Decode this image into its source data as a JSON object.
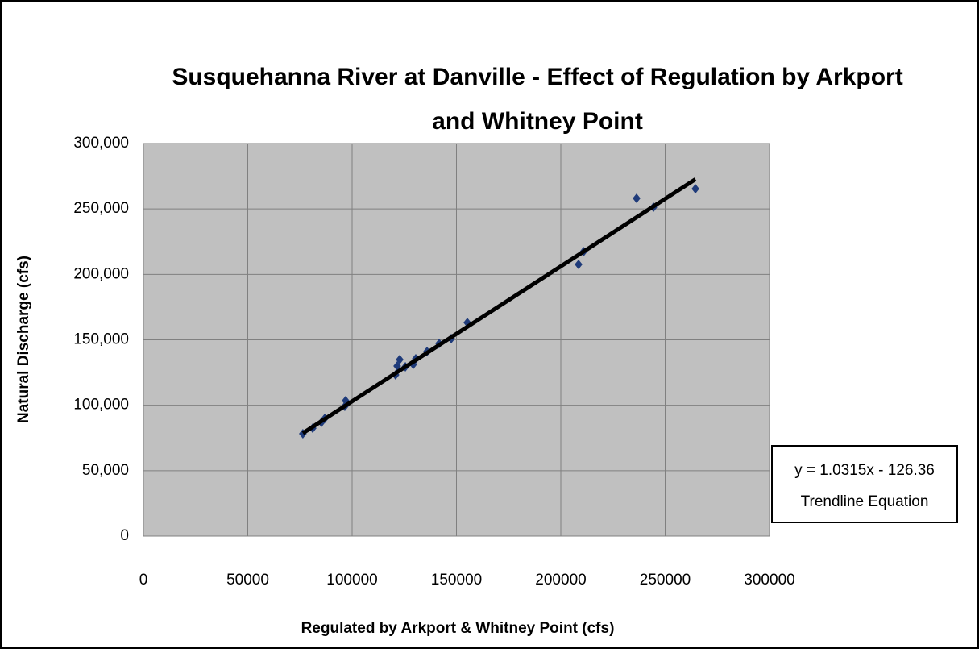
{
  "chart_data": {
    "type": "scatter",
    "title": [
      "Susquehanna River at Danville - Effect of Regulation by Arkport",
      "and Whitney Point"
    ],
    "x_label": "Regulated by Arkport & Whitney Point (cfs)",
    "y_label": "Natural Discharge (cfs)",
    "xlim": [
      0,
      300000
    ],
    "xticks": [
      0,
      50000,
      100000,
      150000,
      200000,
      250000,
      300000
    ],
    "ylim": [
      0,
      300000
    ],
    "yticks": [
      0,
      {
        "value": 50000,
        "label": "50,000"
      },
      {
        "value": 100000,
        "label": "100,000"
      },
      {
        "value": 150000,
        "label": "150,000"
      },
      {
        "value": 200000,
        "label": "200,000"
      },
      {
        "value": 250000,
        "label": "250,000"
      },
      {
        "value": 300000,
        "label": "300,000"
      }
    ],
    "grid": true,
    "plot_background": "#c0c0c0",
    "series": [
      {
        "color": "#1f3b7a",
        "x": [
          76400,
          81100,
          85300,
          86900,
          96500,
          96900,
          120800,
          121600,
          122800,
          125500,
          129300,
          130500,
          135900,
          141700,
          147500,
          155200,
          208500,
          210900,
          236300,
          244400,
          264500
        ],
        "values": [
          78200,
          82500,
          86900,
          89900,
          99200,
          103500,
          123200,
          130000,
          134900,
          129400,
          131200,
          135500,
          141100,
          147200,
          150900,
          163200,
          207600,
          217400,
          258100,
          251300,
          265400
        ]
      }
    ],
    "trendline": {
      "slope": 1.0315,
      "intercept": -126.36,
      "color": "#000000",
      "equation": "y = 1.0315x - 126.36",
      "name": "Trendline Equation"
    },
    "legend": "right"
  }
}
